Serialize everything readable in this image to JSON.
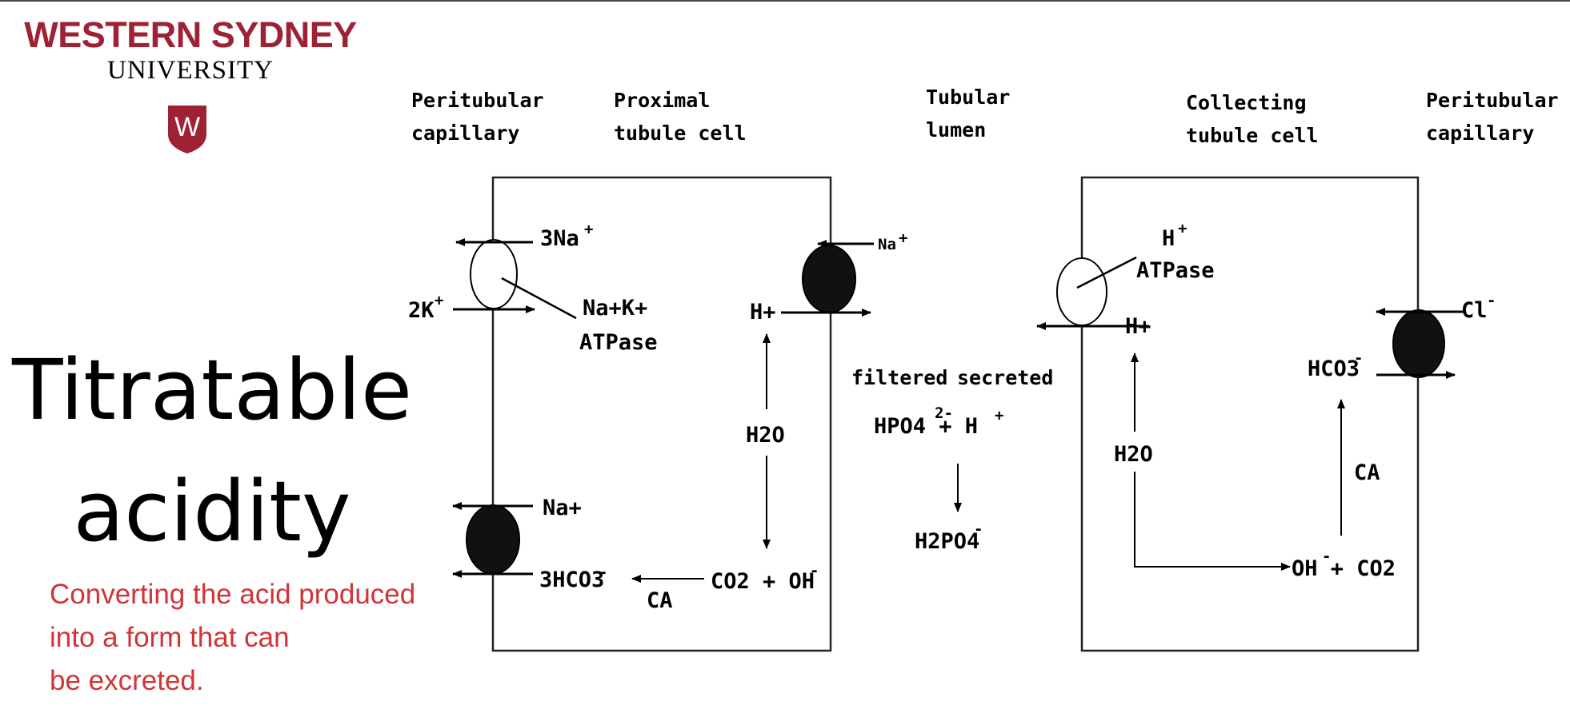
{
  "logo": {
    "line1": "WESTERN SYDNEY",
    "line2": "UNIVERSITY",
    "shield_letter": "W",
    "brand_color": "#9d2235"
  },
  "title": {
    "line1": "Titratable",
    "line2": "acidity"
  },
  "subtitle": {
    "lines": [
      "Converting the acid produced",
      "into a form that can",
      "be excreted."
    ],
    "color": "#d13438"
  },
  "diagram": {
    "headers": {
      "peritubular_left": [
        "Peritubular",
        "capillary"
      ],
      "proximal": [
        "Proximal",
        "tubule cell"
      ],
      "lumen": [
        "Tubular",
        "lumen"
      ],
      "collecting": [
        "Collecting",
        "tubule cell"
      ],
      "peritubular_right": [
        "Peritubular",
        "capillary"
      ]
    },
    "proximal_cell": {
      "na_pump_na": "3Na",
      "na_pump_k": "2K",
      "pump_label_top": "Na+K+",
      "pump_label_bottom": "ATPase",
      "apical_na": "Na",
      "apical_h": "H+",
      "water": "H2O",
      "basal_na": "Na+",
      "bicarbonate": "3HCO3",
      "ca": "CA",
      "co2_oh": "CO2 + OH"
    },
    "lumen": {
      "filtered": "filtered",
      "secreted": "secreted",
      "hpo4": "HPO4 + H",
      "h2po4": "H2PO4"
    },
    "collecting_cell": {
      "h_pump_h": "H",
      "h_pump_label": "ATPase",
      "apical_h": "H+",
      "water": "H2O",
      "oh_co2": "OH + CO2",
      "ca": "CA",
      "bicarbonate": "HCO3",
      "chloride": "Cl"
    }
  }
}
